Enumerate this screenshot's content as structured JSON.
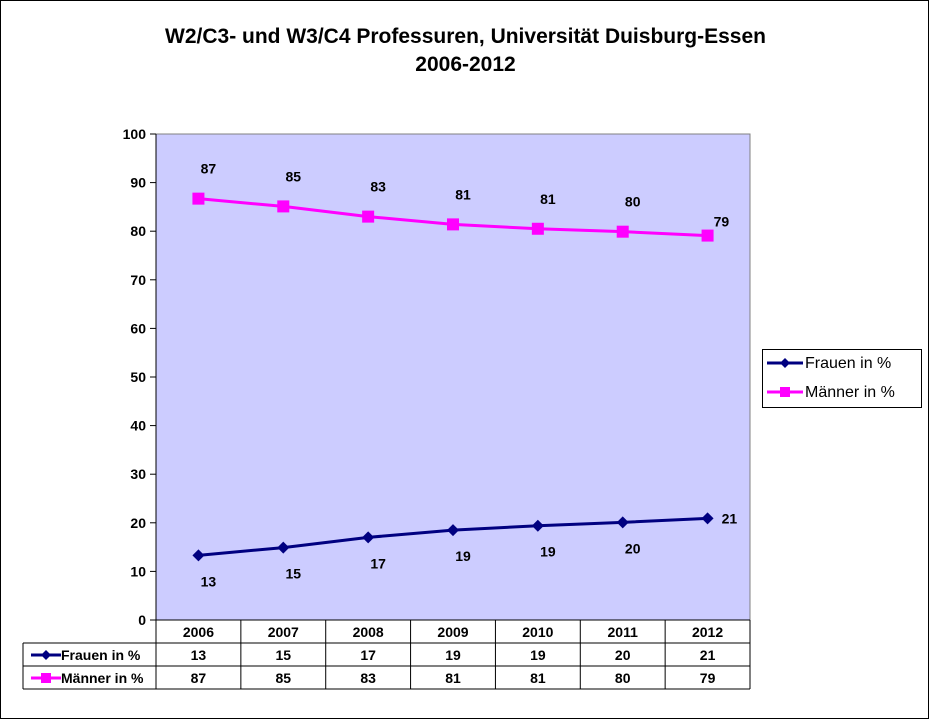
{
  "title": {
    "line1": "W2/C3- und W3/C4 Professuren, Universität Duisburg-Essen",
    "line2": "2006-2012"
  },
  "colors": {
    "plot_background": "#ccccff",
    "frauen": "#000080",
    "maenner": "#ff00ff"
  },
  "chart_data": {
    "type": "line",
    "title": "W2/C3- und W3/C4 Professuren, Universität Duisburg-Essen 2006-2012",
    "xlabel": "",
    "ylabel": "",
    "categories": [
      "2006",
      "2007",
      "2008",
      "2009",
      "2010",
      "2011",
      "2012"
    ],
    "ylim": [
      0,
      100
    ],
    "yticks": [
      0,
      10,
      20,
      30,
      40,
      50,
      60,
      70,
      80,
      90,
      100
    ],
    "grid": false,
    "legend": "right",
    "data_table": true,
    "series": [
      {
        "name": "Frauen in %",
        "marker": "diamond",
        "values": [
          13.3,
          14.9,
          17,
          18.5,
          19.4,
          20.1,
          20.9
        ],
        "labels": [
          "13",
          "15",
          "17",
          "19",
          "19",
          "20",
          "21"
        ]
      },
      {
        "name": "Männer in %",
        "marker": "square",
        "values": [
          86.7,
          85.1,
          83,
          81.4,
          80.5,
          79.9,
          79.1
        ],
        "labels": [
          "87",
          "85",
          "83",
          "81",
          "81",
          "80",
          "79"
        ]
      }
    ]
  }
}
